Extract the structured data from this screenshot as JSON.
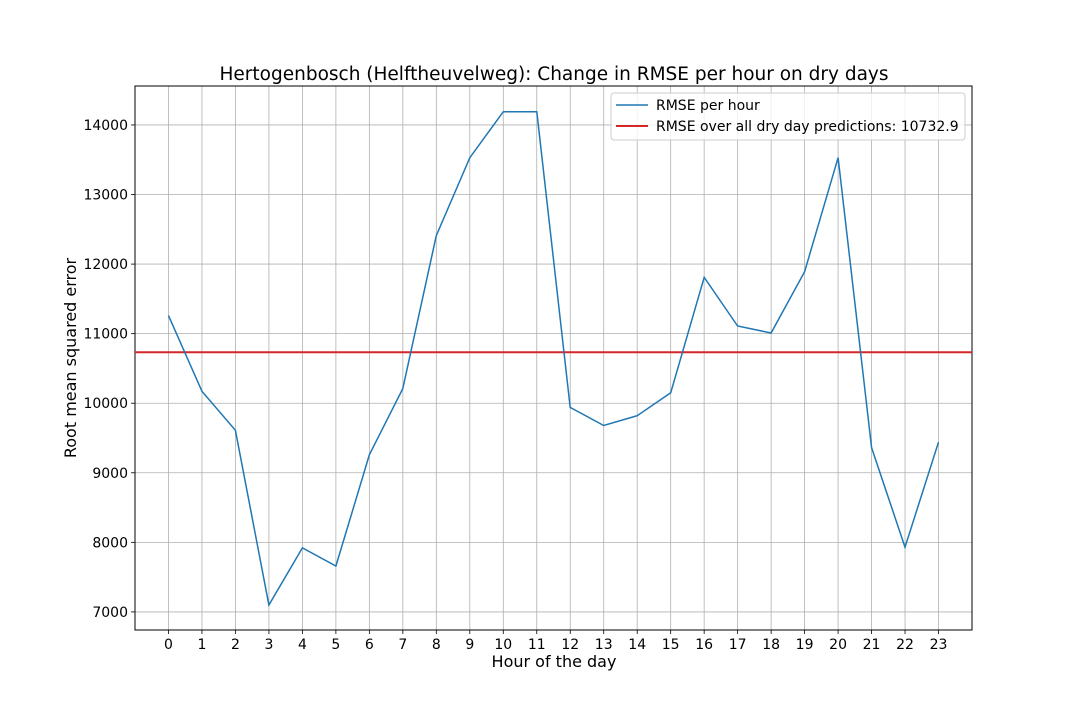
{
  "chart_data": {
    "type": "line",
    "title": "Hertogenbosch (Helftheuvelweg): Change in RMSE per hour on dry days",
    "xlabel": "Hour of the day",
    "ylabel": "Root mean squared error",
    "x": [
      0,
      1,
      2,
      3,
      4,
      5,
      6,
      7,
      8,
      9,
      10,
      11,
      12,
      13,
      14,
      15,
      16,
      17,
      18,
      19,
      20,
      21,
      22,
      23
    ],
    "xticks": [
      "0",
      "1",
      "2",
      "3",
      "4",
      "5",
      "6",
      "7",
      "8",
      "9",
      "10",
      "11",
      "12",
      "13",
      "14",
      "15",
      "16",
      "17",
      "18",
      "19",
      "20",
      "21",
      "22",
      "23"
    ],
    "xlim": [
      -1,
      24
    ],
    "ylim": [
      6740,
      14560
    ],
    "yticks": [
      7000,
      8000,
      9000,
      10000,
      11000,
      12000,
      13000,
      14000
    ],
    "grid": true,
    "legend_position": "top-right",
    "series": [
      {
        "name": "RMSE per hour",
        "color": "#1f77b4",
        "values": [
          11260,
          10170,
          9610,
          7100,
          7920,
          7660,
          9260,
          10210,
          12410,
          13530,
          14190,
          14190,
          9940,
          9680,
          9820,
          10150,
          11810,
          11110,
          11010,
          11890,
          13530,
          9360,
          7930,
          9440
        ]
      }
    ],
    "reference_line": {
      "name": "RMSE over all dry day predictions: 10732.9",
      "value": 10732.9,
      "color": "#d62728"
    }
  }
}
